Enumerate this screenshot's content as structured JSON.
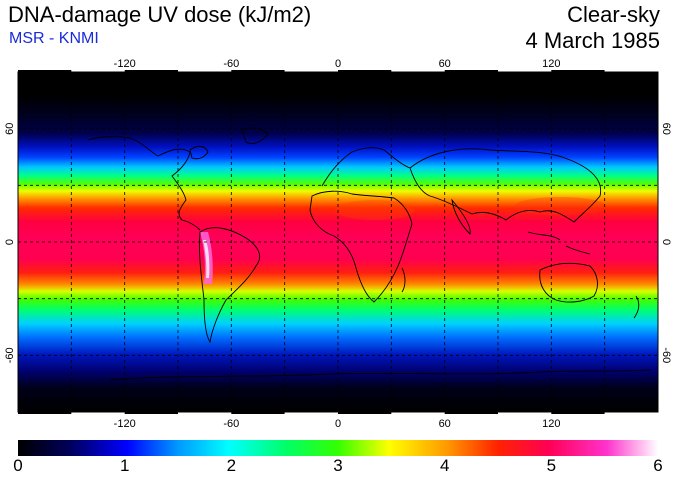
{
  "header": {
    "title": "DNA-damage UV dose (kJ/m2)",
    "source": "MSR - KNMI",
    "condition": "Clear-sky",
    "date": "4 March 1985"
  },
  "map": {
    "lon_ticks": [
      "-120",
      "-60",
      "0",
      "60",
      "120"
    ],
    "lat_ticks_left": [
      "60",
      "0",
      "-60"
    ],
    "lat_ticks_right": [
      "60",
      "0",
      "-60"
    ],
    "grid": "dashed every 30 degrees"
  },
  "colorbar": {
    "labels": [
      "0",
      "1",
      "2",
      "3",
      "4",
      "5",
      "6"
    ],
    "colors": [
      "#000000",
      "#00005a",
      "#0000ff",
      "#0099ff",
      "#00ffff",
      "#00ff66",
      "#33ff00",
      "#ffff00",
      "#ff9900",
      "#ff2200",
      "#ff0055",
      "#ff33cc",
      "#ffffff"
    ]
  },
  "chart_data": {
    "type": "heatmap",
    "title": "DNA-damage UV dose (kJ/m2)",
    "value_range": [
      0,
      6
    ],
    "zonal_profile": {
      "latitude": [
        90,
        75,
        60,
        50,
        40,
        30,
        20,
        10,
        0,
        -10,
        -20,
        -30,
        -40,
        -50,
        -60,
        -75,
        -90
      ],
      "dose": [
        0,
        0.05,
        0.3,
        1.0,
        2.2,
        3.2,
        4.6,
        5.1,
        5.0,
        5.2,
        4.7,
        3.6,
        2.6,
        1.8,
        1.0,
        0.2,
        0
      ]
    },
    "peak": {
      "region": "Andes, South America",
      "dose": 5.9
    }
  }
}
